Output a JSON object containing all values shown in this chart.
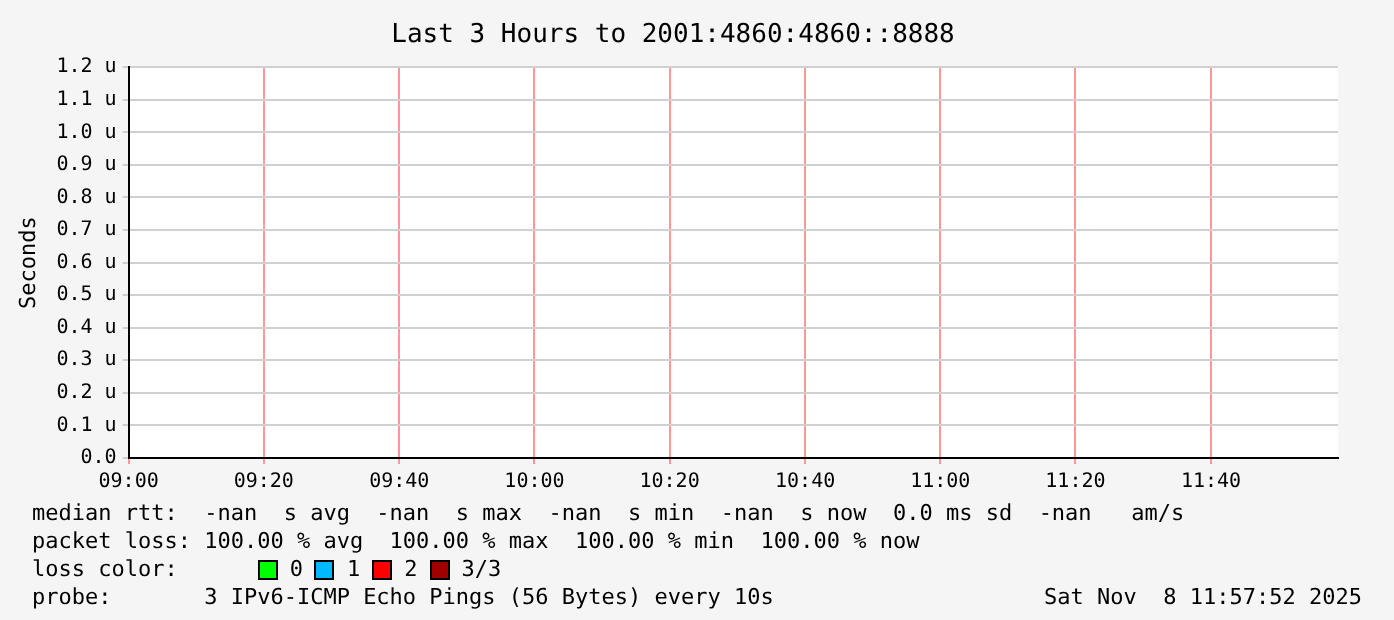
{
  "chart_data": {
    "type": "line",
    "title": "Last 3 Hours to 2001:4860:4860::8888",
    "ylabel": "Seconds",
    "xlim": [
      9,
      11.98
    ],
    "xticks": [
      {
        "value": 9,
        "label": "09:00"
      },
      {
        "value": 9.333,
        "label": "09:20"
      },
      {
        "value": 9.667,
        "label": "09:40"
      },
      {
        "value": 10,
        "label": "10:00"
      },
      {
        "value": 10.333,
        "label": "10:20"
      },
      {
        "value": 10.667,
        "label": "10:40"
      },
      {
        "value": 11,
        "label": "11:00"
      },
      {
        "value": 11.333,
        "label": "11:20"
      },
      {
        "value": 11.667,
        "label": "11:40"
      }
    ],
    "ylim": [
      0,
      1.2
    ],
    "yticks": [
      {
        "value": 0,
        "label": "0.0"
      },
      {
        "value": 0.1,
        "label": "0.1 u"
      },
      {
        "value": 0.2,
        "label": "0.2 u"
      },
      {
        "value": 0.3,
        "label": "0.3 u"
      },
      {
        "value": 0.4,
        "label": "0.4 u"
      },
      {
        "value": 0.5,
        "label": "0.5 u"
      },
      {
        "value": 0.6,
        "label": "0.6 u"
      },
      {
        "value": 0.7,
        "label": "0.7 u"
      },
      {
        "value": 0.8,
        "label": "0.8 u"
      },
      {
        "value": 0.9,
        "label": "0.9 u"
      },
      {
        "value": 1.0,
        "label": "1.0 u"
      },
      {
        "value": 1.1,
        "label": "1.1 u"
      },
      {
        "value": 1.2,
        "label": "1.2 u"
      }
    ],
    "grid": true,
    "legend": false,
    "annotations": [
      "median rtt:  -nan  s avg  -nan  s max  -nan  s min  -nan  s now  0.0 ms sd  -nan   am/s",
      "packet loss: 100.00 % avg  100.00 % max  100.00 % min  100.00 % now",
      "loss color:",
      "0",
      "1",
      "2",
      "3/3",
      "probe:       3 IPv6-ICMP Echo Pings (56 Bytes) every 10s",
      "Sat Nov  8 11:57:52 2025"
    ]
  }
}
